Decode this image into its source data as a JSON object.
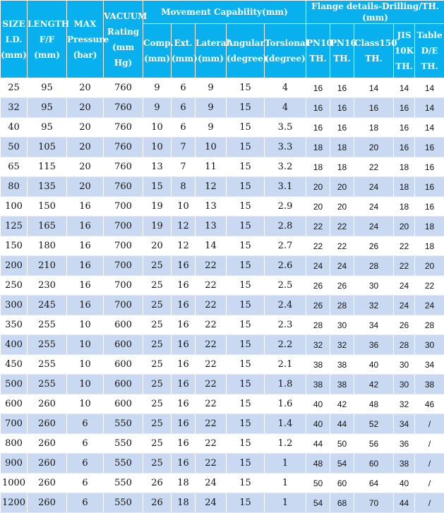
{
  "header": {
    "movement_group": "Movement Capability(mm)",
    "flange_group": "Flange details-Drilling/TH.(mm)",
    "columns": [
      [
        "SIZE",
        "I.D.",
        "(mm)"
      ],
      [
        "LENGTH",
        "F/F",
        "(mm)"
      ],
      [
        "MAX",
        "Pressure",
        "(bar)"
      ],
      [
        "VACUUM",
        "Rating",
        "(mm Hg)"
      ],
      [
        "Comp.",
        "(mm)"
      ],
      [
        "Ext.",
        "(mm)"
      ],
      [
        "Lateral",
        "(mm)"
      ],
      [
        "Angular",
        "(degree)"
      ],
      [
        "Torsional",
        "(degree)"
      ],
      [
        "PN10",
        "TH."
      ],
      [
        "PN16",
        "TH."
      ],
      [
        "Class150",
        "TH."
      ],
      [
        "JIS",
        "10K",
        "TH."
      ],
      [
        "Table",
        "D/E",
        "TH."
      ]
    ]
  },
  "rows": [
    [
      "25",
      "95",
      "20",
      "760",
      "9",
      "6",
      "9",
      "15",
      "4",
      "16",
      "16",
      "14",
      "14",
      "14"
    ],
    [
      "32",
      "95",
      "20",
      "760",
      "9",
      "6",
      "9",
      "15",
      "4",
      "16",
      "16",
      "16",
      "16",
      "14"
    ],
    [
      "40",
      "95",
      "20",
      "760",
      "10",
      "6",
      "9",
      "15",
      "3.5",
      "16",
      "16",
      "18",
      "16",
      "14"
    ],
    [
      "50",
      "105",
      "20",
      "760",
      "10",
      "7",
      "10",
      "15",
      "3.3",
      "18",
      "18",
      "20",
      "16",
      "16"
    ],
    [
      "65",
      "115",
      "20",
      "760",
      "13",
      "7",
      "11",
      "15",
      "3.2",
      "18",
      "18",
      "22",
      "18",
      "16"
    ],
    [
      "80",
      "135",
      "20",
      "760",
      "15",
      "8",
      "12",
      "15",
      "3.1",
      "20",
      "20",
      "24",
      "18",
      "16"
    ],
    [
      "100",
      "150",
      "16",
      "700",
      "19",
      "10",
      "13",
      "15",
      "2.9",
      "20",
      "20",
      "24",
      "18",
      "16"
    ],
    [
      "125",
      "165",
      "16",
      "700",
      "19",
      "12",
      "13",
      "15",
      "2.8",
      "22",
      "22",
      "24",
      "20",
      "18"
    ],
    [
      "150",
      "180",
      "16",
      "700",
      "20",
      "12",
      "14",
      "15",
      "2.7",
      "22",
      "22",
      "26",
      "22",
      "18"
    ],
    [
      "200",
      "210",
      "16",
      "700",
      "25",
      "16",
      "22",
      "15",
      "2.6",
      "24",
      "24",
      "28",
      "22",
      "20"
    ],
    [
      "250",
      "230",
      "16",
      "700",
      "25",
      "16",
      "22",
      "15",
      "2.5",
      "26",
      "26",
      "30",
      "24",
      "22"
    ],
    [
      "300",
      "245",
      "16",
      "700",
      "25",
      "16",
      "22",
      "15",
      "2.4",
      "26",
      "28",
      "32",
      "24",
      "24"
    ],
    [
      "350",
      "255",
      "10",
      "600",
      "25",
      "16",
      "22",
      "15",
      "2.3",
      "28",
      "30",
      "34",
      "26",
      "28"
    ],
    [
      "400",
      "255",
      "10",
      "600",
      "25",
      "16",
      "22",
      "15",
      "2.2",
      "32",
      "32",
      "36",
      "28",
      "30"
    ],
    [
      "450",
      "255",
      "10",
      "600",
      "25",
      "16",
      "22",
      "15",
      "2.1",
      "38",
      "38",
      "40",
      "30",
      "34"
    ],
    [
      "500",
      "255",
      "10",
      "600",
      "25",
      "16",
      "22",
      "15",
      "1.8",
      "38",
      "38",
      "42",
      "30",
      "38"
    ],
    [
      "600",
      "260",
      "10",
      "600",
      "25",
      "16",
      "22",
      "15",
      "1.6",
      "40",
      "42",
      "48",
      "32",
      "46"
    ],
    [
      "700",
      "260",
      "6",
      "550",
      "25",
      "16",
      "22",
      "15",
      "1.4",
      "40",
      "44",
      "52",
      "34",
      "/"
    ],
    [
      "800",
      "260",
      "6",
      "550",
      "25",
      "16",
      "22",
      "15",
      "1.2",
      "44",
      "50",
      "56",
      "36",
      "/"
    ],
    [
      "900",
      "260",
      "6",
      "550",
      "25",
      "16",
      "22",
      "15",
      "1",
      "48",
      "54",
      "60",
      "38",
      "/"
    ],
    [
      "1000",
      "260",
      "6",
      "550",
      "26",
      "18",
      "24",
      "15",
      "1",
      "50",
      "60",
      "64",
      "40",
      "/"
    ],
    [
      "1200",
      "260",
      "6",
      "550",
      "26",
      "18",
      "24",
      "15",
      "1",
      "54",
      "68",
      "70",
      "44",
      "/"
    ]
  ],
  "colors": {
    "header_bg": "#08b0ee",
    "stripe": "#c9d9f1"
  }
}
